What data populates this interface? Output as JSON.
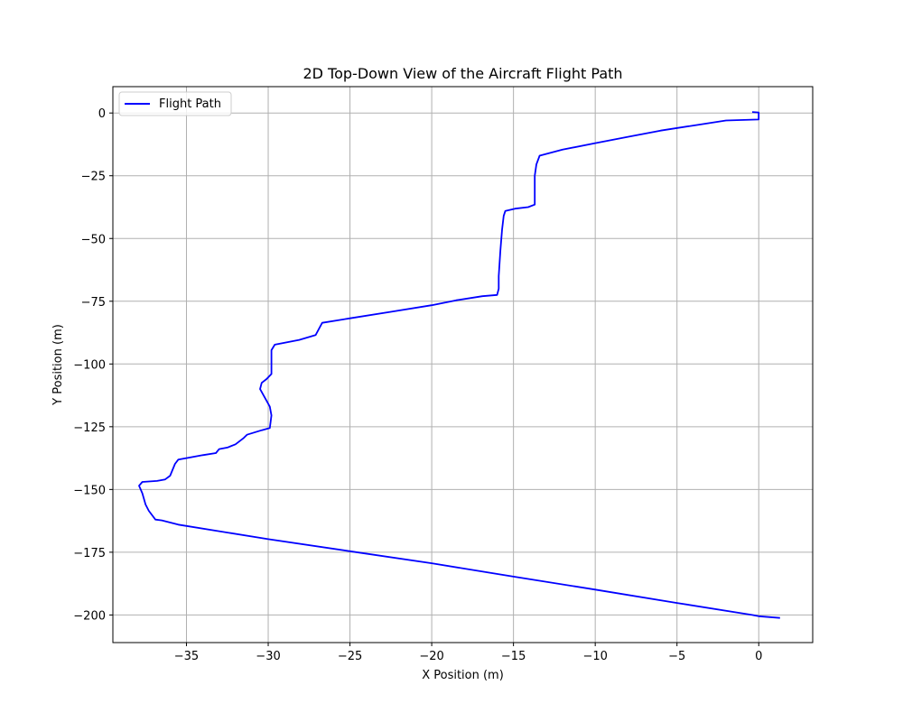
{
  "chart_data": {
    "type": "line",
    "title": "2D Top-Down View of the Aircraft Flight Path",
    "xlabel": "X Position (m)",
    "ylabel": "Y Position (m)",
    "xlim": [
      -39.5,
      3.3
    ],
    "ylim": [
      -211,
      10.5
    ],
    "xticks": [
      -35,
      -30,
      -25,
      -20,
      -15,
      -10,
      -5,
      0
    ],
    "yticks": [
      0,
      -25,
      -50,
      -75,
      -100,
      -125,
      -150,
      -175,
      -200
    ],
    "grid": true,
    "legend_position": "top-left",
    "series": [
      {
        "name": "Flight Path",
        "color": "#0000ff",
        "points": [
          [
            -0.4,
            0.4
          ],
          [
            0.0,
            0.2
          ],
          [
            0.0,
            -2.6
          ],
          [
            -2.0,
            -3.0
          ],
          [
            -4.0,
            -5.0
          ],
          [
            -6.0,
            -7.0
          ],
          [
            -8.0,
            -9.5
          ],
          [
            -10.0,
            -12.0
          ],
          [
            -12.0,
            -14.6
          ],
          [
            -13.4,
            -17.0
          ],
          [
            -13.6,
            -20.5
          ],
          [
            -13.7,
            -25.0
          ],
          [
            -13.7,
            -32.0
          ],
          [
            -13.7,
            -36.5
          ],
          [
            -14.1,
            -37.5
          ],
          [
            -14.9,
            -38.1
          ],
          [
            -15.5,
            -39.0
          ],
          [
            -15.6,
            -41.0
          ],
          [
            -15.7,
            -46.5
          ],
          [
            -15.8,
            -55.0
          ],
          [
            -15.9,
            -65.0
          ],
          [
            -15.9,
            -70.0
          ],
          [
            -16.0,
            -72.5
          ],
          [
            -16.9,
            -73.0
          ],
          [
            -18.5,
            -74.6
          ],
          [
            -20.0,
            -76.6
          ],
          [
            -22.5,
            -79.2
          ],
          [
            -25.0,
            -81.8
          ],
          [
            -26.7,
            -83.6
          ],
          [
            -27.1,
            -88.5
          ],
          [
            -28.1,
            -90.4
          ],
          [
            -29.6,
            -92.3
          ],
          [
            -29.8,
            -94.5
          ],
          [
            -29.8,
            -99.5
          ],
          [
            -29.8,
            -104.0
          ],
          [
            -30.1,
            -106.0
          ],
          [
            -30.4,
            -107.5
          ],
          [
            -30.5,
            -110.0
          ],
          [
            -30.2,
            -113.5
          ],
          [
            -29.9,
            -117.0
          ],
          [
            -29.8,
            -120.5
          ],
          [
            -29.9,
            -125.5
          ],
          [
            -30.4,
            -126.4
          ],
          [
            -31.3,
            -128.2
          ],
          [
            -31.5,
            -129.5
          ],
          [
            -32.0,
            -132.0
          ],
          [
            -32.5,
            -133.3
          ],
          [
            -33.0,
            -133.9
          ],
          [
            -33.2,
            -135.5
          ],
          [
            -34.0,
            -136.3
          ],
          [
            -35.5,
            -138.1
          ],
          [
            -35.7,
            -139.8
          ],
          [
            -36.0,
            -144.5
          ],
          [
            -36.3,
            -146.0
          ],
          [
            -36.8,
            -146.6
          ],
          [
            -37.7,
            -147.0
          ],
          [
            -37.9,
            -148.5
          ],
          [
            -37.7,
            -151.5
          ],
          [
            -37.5,
            -156.0
          ],
          [
            -37.3,
            -158.5
          ],
          [
            -36.9,
            -162.0
          ],
          [
            -36.5,
            -162.3
          ],
          [
            -35.5,
            -164.0
          ],
          [
            -30.0,
            -169.8
          ],
          [
            -25.0,
            -174.6
          ],
          [
            -20.0,
            -179.4
          ],
          [
            -15.0,
            -184.7
          ],
          [
            -10.0,
            -189.9
          ],
          [
            -5.0,
            -195.2
          ],
          [
            -0.4,
            -200.0
          ],
          [
            0.0,
            -200.5
          ],
          [
            1.3,
            -201.2
          ]
        ]
      }
    ]
  }
}
